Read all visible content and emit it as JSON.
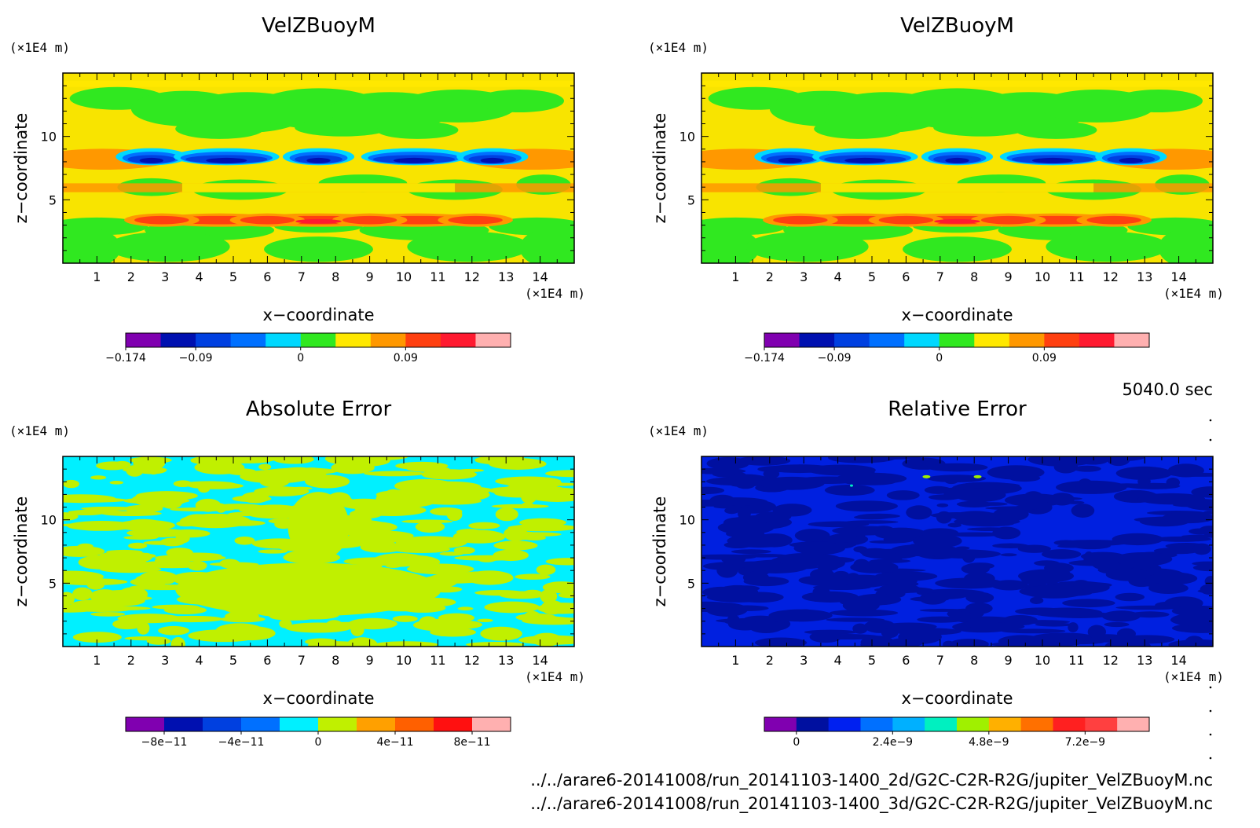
{
  "figure": {
    "time_label": "5040.0 sec",
    "files": [
      "../../arare6-20141008/run_20141103-1400_2d/G2C-C2R-R2G/jupiter_VelZBuoyM.nc",
      "../../arare6-20141008/run_20141103-1400_3d/G2C-C2R-R2G/jupiter_VelZBuoyM.nc"
    ]
  },
  "chart_data": [
    {
      "type": "heatmap",
      "title": "VelZBuoyM",
      "xlabel": "x−coordinate",
      "ylabel": "z−coordinate",
      "x_unit": "(×1E4 m)",
      "y_unit": "(×1E4 m)",
      "xlim": [
        0,
        15
      ],
      "ylim": [
        0,
        15
      ],
      "xticks": [
        "1",
        "2",
        "3",
        "4",
        "5",
        "6",
        "7",
        "8",
        "9",
        "10",
        "11",
        "12",
        "13",
        "14"
      ],
      "yticks": [
        "5",
        "10"
      ],
      "colorbar": {
        "colors": [
          "#8000b0",
          "#0010b0",
          "#0040e0",
          "#0070ff",
          "#00d8ff",
          "#30e820",
          "#ffe800",
          "#ff9800",
          "#ff4010",
          "#ff1a30",
          "#ffb0b0"
        ],
        "labels": [
          "−0.174",
          "−0.09",
          "0",
          "0.09"
        ]
      },
      "background_color": "#f8e400"
    },
    {
      "type": "heatmap",
      "title": "VelZBuoyM",
      "xlabel": "x−coordinate",
      "ylabel": "z−coordinate",
      "x_unit": "(×1E4 m)",
      "y_unit": "(×1E4 m)",
      "xlim": [
        0,
        15
      ],
      "ylim": [
        0,
        15
      ],
      "xticks": [
        "1",
        "2",
        "3",
        "4",
        "5",
        "6",
        "7",
        "8",
        "9",
        "10",
        "11",
        "12",
        "13",
        "14"
      ],
      "yticks": [
        "5",
        "10"
      ],
      "colorbar": {
        "colors": [
          "#8000b0",
          "#0010b0",
          "#0040e0",
          "#0070ff",
          "#00d8ff",
          "#30e820",
          "#ffe800",
          "#ff9800",
          "#ff4010",
          "#ff1a30",
          "#ffb0b0"
        ],
        "labels": [
          "−0.174",
          "−0.09",
          "0",
          "0.09"
        ]
      },
      "background_color": "#f8e400"
    },
    {
      "type": "heatmap",
      "title": "Absolute Error",
      "xlabel": "x−coordinate",
      "ylabel": "z−coordinate",
      "x_unit": "(×1E4 m)",
      "y_unit": "(×1E4 m)",
      "xlim": [
        0,
        15
      ],
      "ylim": [
        0,
        15
      ],
      "xticks": [
        "1",
        "2",
        "3",
        "4",
        "5",
        "6",
        "7",
        "8",
        "9",
        "10",
        "11",
        "12",
        "13",
        "14"
      ],
      "yticks": [
        "5",
        "10"
      ],
      "colorbar": {
        "colors": [
          "#8000b0",
          "#0010b0",
          "#0040e0",
          "#0070ff",
          "#00f0ff",
          "#c0f000",
          "#ffa000",
          "#ff6000",
          "#ff1010",
          "#ffb0b0"
        ],
        "labels": [
          "−8e−11",
          "−4e−11",
          "0",
          "4e−11",
          "8e−11"
        ]
      },
      "background_color": "#00f0ff"
    },
    {
      "type": "heatmap",
      "title": "Relative Error",
      "xlabel": "x−coordinate",
      "ylabel": "z−coordinate",
      "x_unit": "(×1E4 m)",
      "y_unit": "(×1E4 m)",
      "xlim": [
        0,
        15
      ],
      "ylim": [
        0,
        15
      ],
      "xticks": [
        "1",
        "2",
        "3",
        "4",
        "5",
        "6",
        "7",
        "8",
        "9",
        "10",
        "11",
        "12",
        "13",
        "14"
      ],
      "yticks": [
        "5",
        "10"
      ],
      "colorbar": {
        "colors": [
          "#8000b0",
          "#0010a0",
          "#0020f0",
          "#0070ff",
          "#00b0ff",
          "#00f0c0",
          "#a0f000",
          "#ffb000",
          "#ff7000",
          "#ff2020",
          "#ff4040",
          "#ffb0b0"
        ],
        "labels": [
          "0",
          "2.4e−9",
          "4.8e−9",
          "7.2e−9"
        ]
      },
      "background_color": "#0020e0"
    }
  ]
}
